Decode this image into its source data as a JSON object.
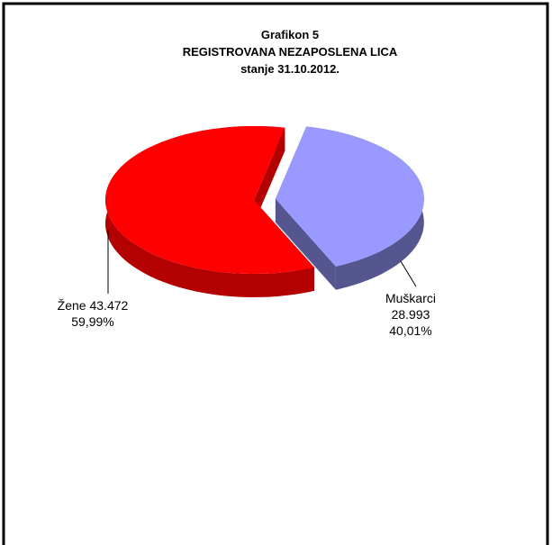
{
  "chart_data": {
    "type": "pie3d",
    "title": "Grafikon 5",
    "subtitle": "REGISTROVANA NEZAPOSLENA LICA",
    "date_line": "stanje 31.10.2012.",
    "categories": [
      "Muškarci",
      "Žene"
    ],
    "values": [
      28993,
      43472
    ],
    "value_labels": [
      "28.993",
      "43.472"
    ],
    "percents": [
      40.01,
      59.99
    ],
    "percent_labels": [
      "40,01%",
      "59,99%"
    ],
    "colors": [
      "#9999ff",
      "#ff0000"
    ],
    "side_colors": [
      "#55558f",
      "#b30000"
    ]
  }
}
